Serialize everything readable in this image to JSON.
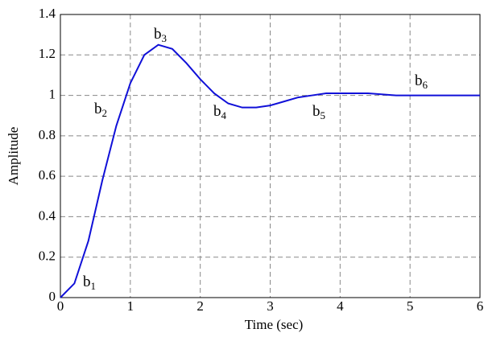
{
  "chart_data": {
    "type": "line",
    "xlabel": "Time (sec)",
    "ylabel": "Amplitude",
    "x": [
      0,
      0.2,
      0.4,
      0.6,
      0.8,
      1.0,
      1.2,
      1.4,
      1.6,
      1.8,
      2.0,
      2.2,
      2.4,
      2.6,
      2.8,
      3.0,
      3.2,
      3.4,
      3.6,
      3.8,
      4.0,
      4.4,
      4.8,
      5.2,
      6.0
    ],
    "values": [
      0,
      0.07,
      0.28,
      0.58,
      0.85,
      1.06,
      1.2,
      1.25,
      1.23,
      1.16,
      1.08,
      1.01,
      0.96,
      0.94,
      0.94,
      0.95,
      0.97,
      0.99,
      1.0,
      1.01,
      1.01,
      1.01,
      1.0,
      1.0,
      1.0
    ],
    "color": "#1010d8",
    "xlim": [
      0,
      6
    ],
    "xticks": [
      0,
      1,
      2,
      3,
      4,
      5,
      6
    ],
    "ylim": [
      0,
      1.4
    ],
    "yticks": [
      0,
      0.2,
      0.4,
      0.6,
      0.8,
      1,
      1.2,
      1.4
    ],
    "grid": true,
    "annotations": [
      {
        "text": "b",
        "subscript": "1"
      },
      {
        "text": "b",
        "subscript": "2"
      },
      {
        "text": "b",
        "subscript": "3"
      },
      {
        "text": "b",
        "subscript": "4"
      },
      {
        "text": "b",
        "subscript": "5"
      },
      {
        "text": "b",
        "subscript": "6"
      }
    ]
  }
}
